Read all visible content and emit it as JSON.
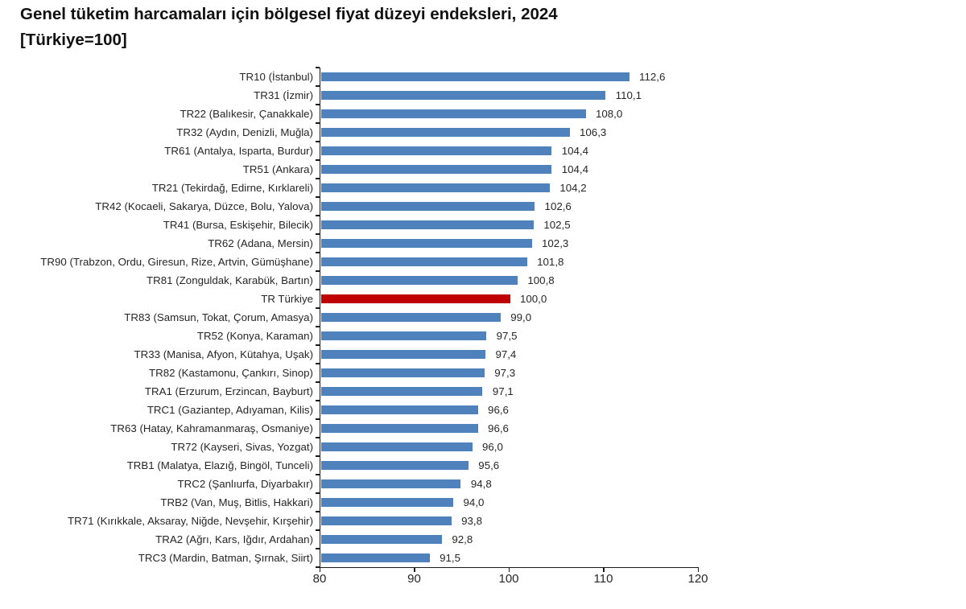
{
  "title": "Genel tüketim harcamaları için bölgesel fiyat düzeyi endeksleri, 2024",
  "subtitle": "[Türkiye=100]",
  "chart_data": {
    "type": "bar",
    "orientation": "horizontal",
    "categories": [
      "TR10 (İstanbul)",
      "TR31 (İzmir)",
      "TR22 (Balıkesir, Çanakkale)",
      "TR32 (Aydın, Denizli, Muğla)",
      "TR61 (Antalya, Isparta, Burdur)",
      "TR51 (Ankara)",
      "TR21 (Tekirdağ, Edirne, Kırklareli)",
      "TR42 (Kocaeli, Sakarya, Düzce, Bolu, Yalova)",
      "TR41 (Bursa, Eskişehir, Bilecik)",
      "TR62 (Adana, Mersin)",
      "TR90 (Trabzon, Ordu, Giresun, Rize, Artvin, Gümüşhane)",
      "TR81 (Zonguldak, Karabük, Bartın)",
      "TR Türkiye",
      "TR83 (Samsun, Tokat, Çorum, Amasya)",
      "TR52 (Konya, Karaman)",
      "TR33 (Manisa, Afyon, Kütahya, Uşak)",
      "TR82 (Kastamonu, Çankırı, Sinop)",
      "TRA1 (Erzurum, Erzincan, Bayburt)",
      "TRC1 (Gaziantep, Adıyaman, Kilis)",
      "TR63 (Hatay, Kahramanmaraş, Osmaniye)",
      "TR72 (Kayseri, Sivas, Yozgat)",
      "TRB1 (Malatya, Elazığ, Bingöl, Tunceli)",
      "TRC2 (Şanlıurfa, Diyarbakır)",
      "TRB2 (Van, Muş, Bitlis, Hakkari)",
      "TR71 (Kırıkkale, Aksaray, Niğde, Nevşehir, Kırşehir)",
      "TRA2 (Ağrı, Kars, Iğdır, Ardahan)",
      "TRC3 (Mardin, Batman, Şırnak, Siirt)"
    ],
    "values": [
      112.6,
      110.1,
      108.0,
      106.3,
      104.4,
      104.4,
      104.2,
      102.6,
      102.5,
      102.3,
      101.8,
      100.8,
      100.0,
      99.0,
      97.5,
      97.4,
      97.3,
      97.1,
      96.6,
      96.6,
      96.0,
      95.6,
      94.8,
      94.0,
      93.8,
      92.8,
      91.5
    ],
    "value_labels": [
      "112,6",
      "110,1",
      "108,0",
      "106,3",
      "104,4",
      "104,4",
      "104,2",
      "102,6",
      "102,5",
      "102,3",
      "101,8",
      "100,8",
      "100,0",
      "99,0",
      "97,5",
      "97,4",
      "97,3",
      "97,1",
      "96,6",
      "96,6",
      "96,0",
      "95,6",
      "94,8",
      "94,0",
      "93,8",
      "92,8",
      "91,5"
    ],
    "highlight_category": "TR Türkiye",
    "bar_color": "#4f81bd",
    "highlight_color": "#c00000",
    "xlim": [
      80,
      120
    ],
    "x_ticks": [
      "80",
      "90",
      "100",
      "110",
      "120"
    ],
    "grid": false,
    "legend": false
  }
}
